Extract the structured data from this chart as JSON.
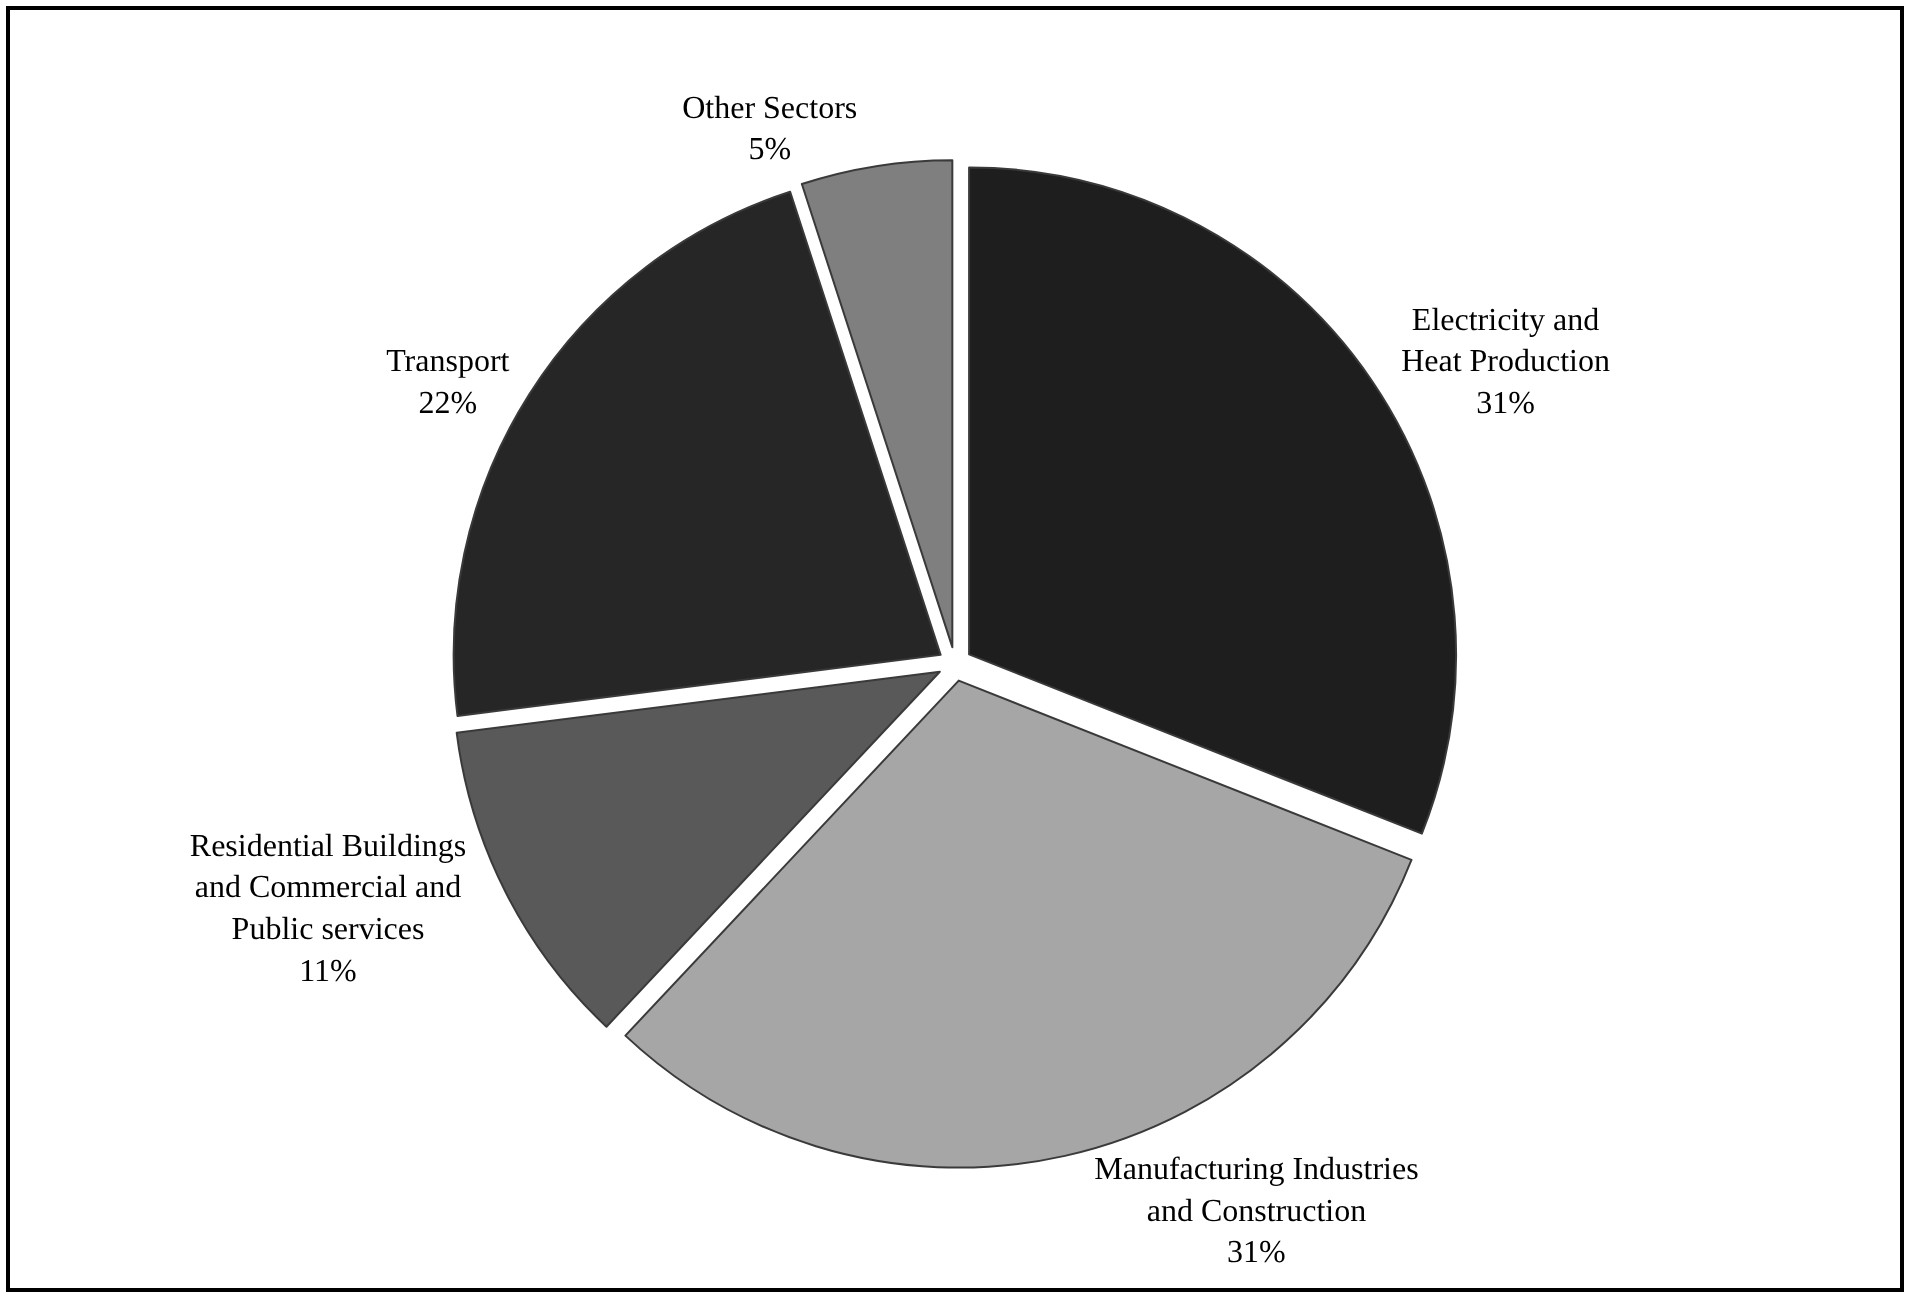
{
  "chart_data": {
    "type": "pie",
    "categories": [
      "Electricity and\nHeat Production",
      "Manufacturing Industries\nand Construction",
      "Residential Buildings\nand Commercial and\nPublic services",
      "Transport",
      "Other Sectors"
    ],
    "values": [
      31,
      31,
      11,
      22,
      5
    ],
    "value_labels": [
      "31%",
      "31%",
      "11%",
      "22%",
      "5%"
    ],
    "colors": [
      "#1e1e1e",
      "#a6a6a6",
      "#595959",
      "#262626",
      "#7f7f7f"
    ],
    "legend": false
  }
}
